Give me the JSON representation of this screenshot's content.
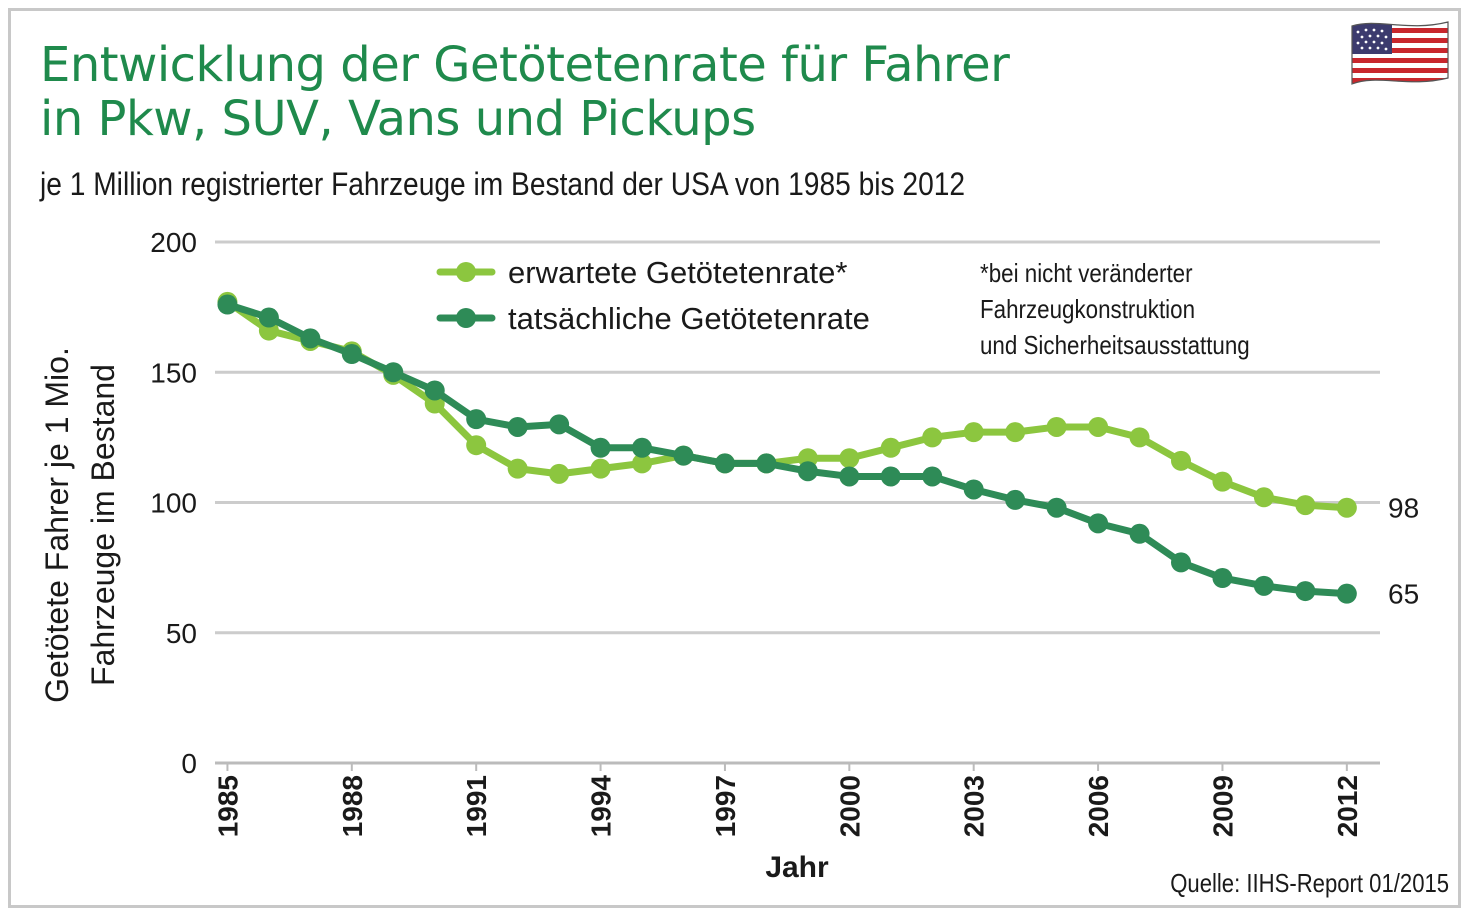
{
  "title_line1": "Entwicklung der Getötetenrate für Fahrer",
  "title_line2": "in Pkw, SUV, Vans und Pickups",
  "subtitle": "je 1 Million registrierter Fahrzeuge im Bestand der USA von 1985 bis 2012",
  "source": "Quelle: IIHS-Report 01/2015",
  "note_line1": "*bei nicht veränderter Fahrzeugkonstruktion",
  "note_line2": "und Sicherheitsausstattung",
  "flag_icon": "us-flag-icon",
  "colors": {
    "expected": "#8cc63f",
    "actual": "#2e8b57",
    "grid": "#cccccc",
    "title": "#1f8a4c"
  },
  "chart_data": {
    "type": "line",
    "xlabel": "Jahr",
    "ylabel_line1": "Getötete Fahrer je 1 Mio.",
    "ylabel_line2": "Fahrzeuge im Bestand",
    "ylim": [
      0,
      200
    ],
    "yticks": [
      0,
      50,
      100,
      150,
      200
    ],
    "xticks": [
      1985,
      1988,
      1991,
      1994,
      1997,
      2000,
      2003,
      2006,
      2009,
      2012
    ],
    "x": [
      1985,
      1986,
      1987,
      1988,
      1989,
      1990,
      1991,
      1992,
      1993,
      1994,
      1995,
      1996,
      1997,
      1998,
      1999,
      2000,
      2001,
      2002,
      2003,
      2004,
      2005,
      2006,
      2007,
      2008,
      2009,
      2010,
      2011,
      2012
    ],
    "grid": true,
    "legend_position": "top",
    "series": [
      {
        "name": "erwartete Getötetenrate*",
        "color": "#8cc63f",
        "values": [
          177,
          166,
          162,
          158,
          149,
          138,
          122,
          113,
          111,
          113,
          115,
          118,
          115,
          115,
          117,
          117,
          121,
          125,
          127,
          127,
          129,
          129,
          125,
          116,
          108,
          102,
          99,
          98
        ],
        "end_label": "98"
      },
      {
        "name": "tatsächliche Getötetenrate",
        "color": "#2e8b57",
        "values": [
          176,
          171,
          163,
          157,
          150,
          143,
          132,
          129,
          130,
          121,
          121,
          118,
          115,
          115,
          112,
          110,
          110,
          110,
          105,
          101,
          98,
          92,
          88,
          77,
          71,
          68,
          66,
          65
        ],
        "end_label": "65"
      }
    ]
  }
}
